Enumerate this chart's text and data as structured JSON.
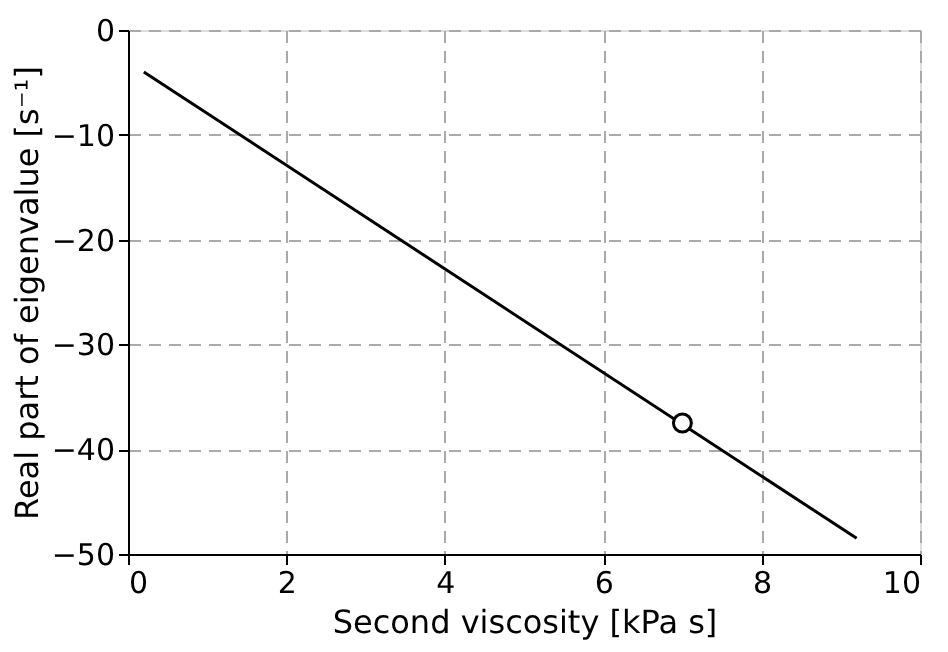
{
  "chart_data": {
    "type": "line",
    "xlabel": "Second viscosity [kPa s]",
    "ylabel": "Real part of eigenvalue [s⁻¹]",
    "xlim": [
      0,
      10
    ],
    "ylim": [
      -50,
      0
    ],
    "xticks": [
      0,
      2,
      4,
      6,
      8,
      10
    ],
    "yticks": [
      -50,
      -40,
      -30,
      -20,
      -10,
      0
    ],
    "grid": true,
    "series": [
      {
        "color": "#000000",
        "x": [
          0.2,
          9.2
        ],
        "values": [
          -4,
          -48.5
        ],
        "marker": "none"
      },
      {
        "type": "scatter",
        "color": "#000000",
        "x": [
          7
        ],
        "values": [
          -37.5
        ],
        "marker": "circle"
      }
    ]
  }
}
